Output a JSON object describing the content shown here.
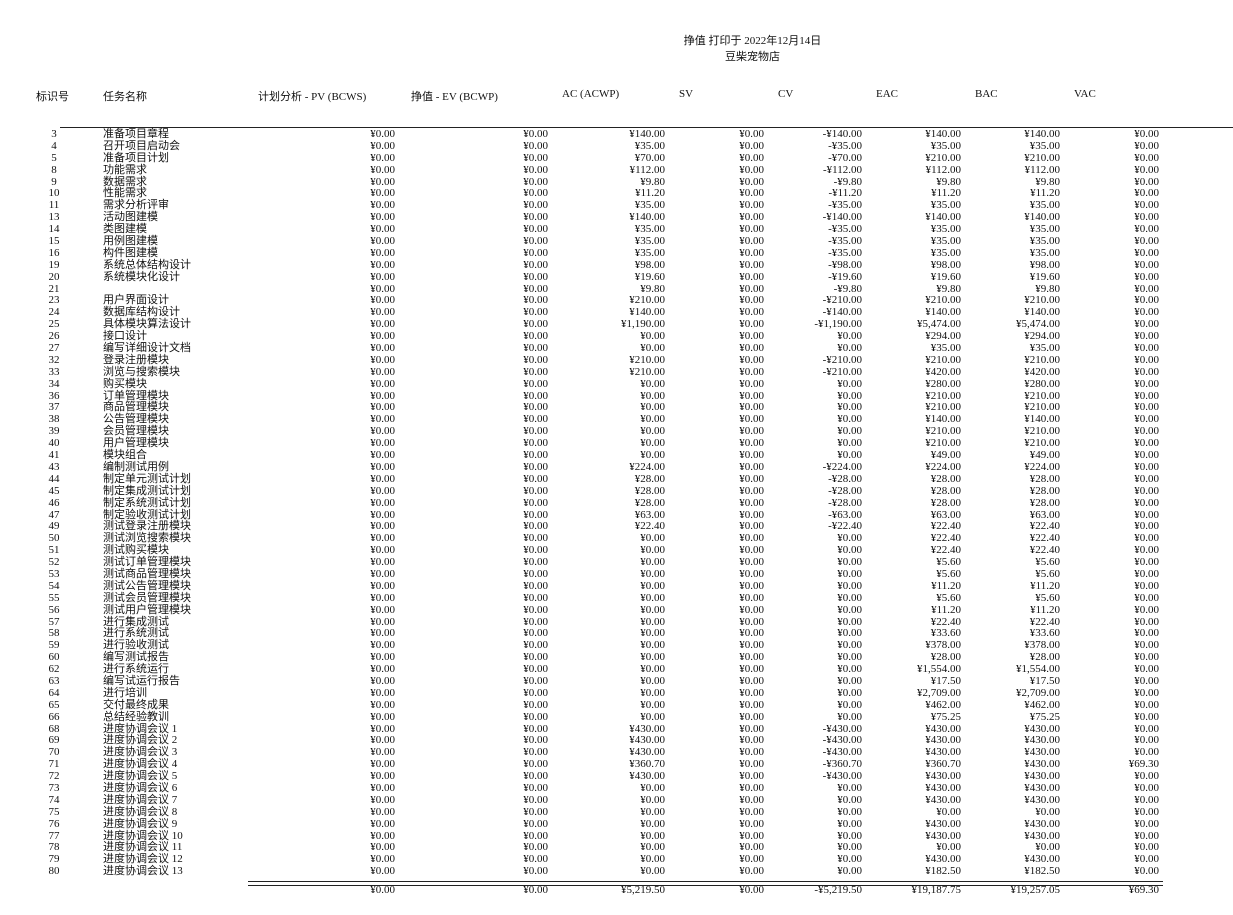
{
  "header": {
    "title_line1": "挣值 打印于 2022年12月14日",
    "title_line2": "豆柴宠物店"
  },
  "columns": {
    "id": "标识号",
    "name": "任务名称",
    "pv": "计划分析 - PV (BCWS)",
    "ev": "挣值 - EV (BCWP)",
    "ac": "AC (ACWP)",
    "sv": "SV",
    "cv": "CV",
    "eac": "EAC",
    "bac": "BAC",
    "vac": "VAC"
  },
  "rows": [
    [
      "3",
      "准备项目章程",
      "¥0.00",
      "¥0.00",
      "¥140.00",
      "¥0.00",
      "-¥140.00",
      "¥140.00",
      "¥140.00",
      "¥0.00"
    ],
    [
      "4",
      "召开项目启动会",
      "¥0.00",
      "¥0.00",
      "¥35.00",
      "¥0.00",
      "-¥35.00",
      "¥35.00",
      "¥35.00",
      "¥0.00"
    ],
    [
      "5",
      "准备项目计划",
      "¥0.00",
      "¥0.00",
      "¥70.00",
      "¥0.00",
      "-¥70.00",
      "¥210.00",
      "¥210.00",
      "¥0.00"
    ],
    [
      "8",
      "功能需求",
      "¥0.00",
      "¥0.00",
      "¥112.00",
      "¥0.00",
      "-¥112.00",
      "¥112.00",
      "¥112.00",
      "¥0.00"
    ],
    [
      "9",
      "数据需求",
      "¥0.00",
      "¥0.00",
      "¥9.80",
      "¥0.00",
      "-¥9.80",
      "¥9.80",
      "¥9.80",
      "¥0.00"
    ],
    [
      "10",
      "性能需求",
      "¥0.00",
      "¥0.00",
      "¥11.20",
      "¥0.00",
      "-¥11.20",
      "¥11.20",
      "¥11.20",
      "¥0.00"
    ],
    [
      "11",
      "需求分析评审",
      "¥0.00",
      "¥0.00",
      "¥35.00",
      "¥0.00",
      "-¥35.00",
      "¥35.00",
      "¥35.00",
      "¥0.00"
    ],
    [
      "13",
      "活动图建模",
      "¥0.00",
      "¥0.00",
      "¥140.00",
      "¥0.00",
      "-¥140.00",
      "¥140.00",
      "¥140.00",
      "¥0.00"
    ],
    [
      "14",
      "类图建模",
      "¥0.00",
      "¥0.00",
      "¥35.00",
      "¥0.00",
      "-¥35.00",
      "¥35.00",
      "¥35.00",
      "¥0.00"
    ],
    [
      "15",
      "用例图建模",
      "¥0.00",
      "¥0.00",
      "¥35.00",
      "¥0.00",
      "-¥35.00",
      "¥35.00",
      "¥35.00",
      "¥0.00"
    ],
    [
      "16",
      "构件图建模",
      "¥0.00",
      "¥0.00",
      "¥35.00",
      "¥0.00",
      "-¥35.00",
      "¥35.00",
      "¥35.00",
      "¥0.00"
    ],
    [
      "19",
      "系统总体结构设计",
      "¥0.00",
      "¥0.00",
      "¥98.00",
      "¥0.00",
      "-¥98.00",
      "¥98.00",
      "¥98.00",
      "¥0.00"
    ],
    [
      "20",
      "系统模块化设计",
      "¥0.00",
      "¥0.00",
      "¥19.60",
      "¥0.00",
      "-¥19.60",
      "¥19.60",
      "¥19.60",
      "¥0.00"
    ],
    [
      "21",
      "",
      "¥0.00",
      "¥0.00",
      "¥9.80",
      "¥0.00",
      "-¥9.80",
      "¥9.80",
      "¥9.80",
      "¥0.00"
    ],
    [
      "23",
      "用户界面设计",
      "¥0.00",
      "¥0.00",
      "¥210.00",
      "¥0.00",
      "-¥210.00",
      "¥210.00",
      "¥210.00",
      "¥0.00"
    ],
    [
      "24",
      "数据库结构设计",
      "¥0.00",
      "¥0.00",
      "¥140.00",
      "¥0.00",
      "-¥140.00",
      "¥140.00",
      "¥140.00",
      "¥0.00"
    ],
    [
      "25",
      "具体模块算法设计",
      "¥0.00",
      "¥0.00",
      "¥1,190.00",
      "¥0.00",
      "-¥1,190.00",
      "¥5,474.00",
      "¥5,474.00",
      "¥0.00"
    ],
    [
      "26",
      "接口设计",
      "¥0.00",
      "¥0.00",
      "¥0.00",
      "¥0.00",
      "¥0.00",
      "¥294.00",
      "¥294.00",
      "¥0.00"
    ],
    [
      "27",
      "编写详细设计文档",
      "¥0.00",
      "¥0.00",
      "¥0.00",
      "¥0.00",
      "¥0.00",
      "¥35.00",
      "¥35.00",
      "¥0.00"
    ],
    [
      "32",
      "登录注册模块",
      "¥0.00",
      "¥0.00",
      "¥210.00",
      "¥0.00",
      "-¥210.00",
      "¥210.00",
      "¥210.00",
      "¥0.00"
    ],
    [
      "33",
      "浏览与搜索模块",
      "¥0.00",
      "¥0.00",
      "¥210.00",
      "¥0.00",
      "-¥210.00",
      "¥420.00",
      "¥420.00",
      "¥0.00"
    ],
    [
      "34",
      "购买模块",
      "¥0.00",
      "¥0.00",
      "¥0.00",
      "¥0.00",
      "¥0.00",
      "¥280.00",
      "¥280.00",
      "¥0.00"
    ],
    [
      "36",
      "订单管理模块",
      "¥0.00",
      "¥0.00",
      "¥0.00",
      "¥0.00",
      "¥0.00",
      "¥210.00",
      "¥210.00",
      "¥0.00"
    ],
    [
      "37",
      "商品管理模块",
      "¥0.00",
      "¥0.00",
      "¥0.00",
      "¥0.00",
      "¥0.00",
      "¥210.00",
      "¥210.00",
      "¥0.00"
    ],
    [
      "38",
      "公告管理模块",
      "¥0.00",
      "¥0.00",
      "¥0.00",
      "¥0.00",
      "¥0.00",
      "¥140.00",
      "¥140.00",
      "¥0.00"
    ],
    [
      "39",
      "会员管理模块",
      "¥0.00",
      "¥0.00",
      "¥0.00",
      "¥0.00",
      "¥0.00",
      "¥210.00",
      "¥210.00",
      "¥0.00"
    ],
    [
      "40",
      "用户管理模块",
      "¥0.00",
      "¥0.00",
      "¥0.00",
      "¥0.00",
      "¥0.00",
      "¥210.00",
      "¥210.00",
      "¥0.00"
    ],
    [
      "41",
      "模块组合",
      "¥0.00",
      "¥0.00",
      "¥0.00",
      "¥0.00",
      "¥0.00",
      "¥49.00",
      "¥49.00",
      "¥0.00"
    ],
    [
      "43",
      "编制测试用例",
      "¥0.00",
      "¥0.00",
      "¥224.00",
      "¥0.00",
      "-¥224.00",
      "¥224.00",
      "¥224.00",
      "¥0.00"
    ],
    [
      "44",
      "制定单元测试计划",
      "¥0.00",
      "¥0.00",
      "¥28.00",
      "¥0.00",
      "-¥28.00",
      "¥28.00",
      "¥28.00",
      "¥0.00"
    ],
    [
      "45",
      "制定集成测试计划",
      "¥0.00",
      "¥0.00",
      "¥28.00",
      "¥0.00",
      "-¥28.00",
      "¥28.00",
      "¥28.00",
      "¥0.00"
    ],
    [
      "46",
      "制定系统测试计划",
      "¥0.00",
      "¥0.00",
      "¥28.00",
      "¥0.00",
      "-¥28.00",
      "¥28.00",
      "¥28.00",
      "¥0.00"
    ],
    [
      "47",
      "制定验收测试计划",
      "¥0.00",
      "¥0.00",
      "¥63.00",
      "¥0.00",
      "-¥63.00",
      "¥63.00",
      "¥63.00",
      "¥0.00"
    ],
    [
      "49",
      "测试登录注册模块",
      "¥0.00",
      "¥0.00",
      "¥22.40",
      "¥0.00",
      "-¥22.40",
      "¥22.40",
      "¥22.40",
      "¥0.00"
    ],
    [
      "50",
      "测试浏览搜索模块",
      "¥0.00",
      "¥0.00",
      "¥0.00",
      "¥0.00",
      "¥0.00",
      "¥22.40",
      "¥22.40",
      "¥0.00"
    ],
    [
      "51",
      "测试购买模块",
      "¥0.00",
      "¥0.00",
      "¥0.00",
      "¥0.00",
      "¥0.00",
      "¥22.40",
      "¥22.40",
      "¥0.00"
    ],
    [
      "52",
      "测试订单管理模块",
      "¥0.00",
      "¥0.00",
      "¥0.00",
      "¥0.00",
      "¥0.00",
      "¥5.60",
      "¥5.60",
      "¥0.00"
    ],
    [
      "53",
      "测试商品管理模块",
      "¥0.00",
      "¥0.00",
      "¥0.00",
      "¥0.00",
      "¥0.00",
      "¥5.60",
      "¥5.60",
      "¥0.00"
    ],
    [
      "54",
      "测试公告管理模块",
      "¥0.00",
      "¥0.00",
      "¥0.00",
      "¥0.00",
      "¥0.00",
      "¥11.20",
      "¥11.20",
      "¥0.00"
    ],
    [
      "55",
      "测试会员管理模块",
      "¥0.00",
      "¥0.00",
      "¥0.00",
      "¥0.00",
      "¥0.00",
      "¥5.60",
      "¥5.60",
      "¥0.00"
    ],
    [
      "56",
      "测试用户管理模块",
      "¥0.00",
      "¥0.00",
      "¥0.00",
      "¥0.00",
      "¥0.00",
      "¥11.20",
      "¥11.20",
      "¥0.00"
    ],
    [
      "57",
      "进行集成测试",
      "¥0.00",
      "¥0.00",
      "¥0.00",
      "¥0.00",
      "¥0.00",
      "¥22.40",
      "¥22.40",
      "¥0.00"
    ],
    [
      "58",
      "进行系统测试",
      "¥0.00",
      "¥0.00",
      "¥0.00",
      "¥0.00",
      "¥0.00",
      "¥33.60",
      "¥33.60",
      "¥0.00"
    ],
    [
      "59",
      "进行验收测试",
      "¥0.00",
      "¥0.00",
      "¥0.00",
      "¥0.00",
      "¥0.00",
      "¥378.00",
      "¥378.00",
      "¥0.00"
    ],
    [
      "60",
      "编写测试报告",
      "¥0.00",
      "¥0.00",
      "¥0.00",
      "¥0.00",
      "¥0.00",
      "¥28.00",
      "¥28.00",
      "¥0.00"
    ],
    [
      "62",
      "进行系统运行",
      "¥0.00",
      "¥0.00",
      "¥0.00",
      "¥0.00",
      "¥0.00",
      "¥1,554.00",
      "¥1,554.00",
      "¥0.00"
    ],
    [
      "63",
      "编写试运行报告",
      "¥0.00",
      "¥0.00",
      "¥0.00",
      "¥0.00",
      "¥0.00",
      "¥17.50",
      "¥17.50",
      "¥0.00"
    ],
    [
      "64",
      "进行培训",
      "¥0.00",
      "¥0.00",
      "¥0.00",
      "¥0.00",
      "¥0.00",
      "¥2,709.00",
      "¥2,709.00",
      "¥0.00"
    ],
    [
      "65",
      "交付最终成果",
      "¥0.00",
      "¥0.00",
      "¥0.00",
      "¥0.00",
      "¥0.00",
      "¥462.00",
      "¥462.00",
      "¥0.00"
    ],
    [
      "66",
      "总结经验教训",
      "¥0.00",
      "¥0.00",
      "¥0.00",
      "¥0.00",
      "¥0.00",
      "¥75.25",
      "¥75.25",
      "¥0.00"
    ],
    [
      "68",
      "进度协调会议 1",
      "¥0.00",
      "¥0.00",
      "¥430.00",
      "¥0.00",
      "-¥430.00",
      "¥430.00",
      "¥430.00",
      "¥0.00"
    ],
    [
      "69",
      "进度协调会议 2",
      "¥0.00",
      "¥0.00",
      "¥430.00",
      "¥0.00",
      "-¥430.00",
      "¥430.00",
      "¥430.00",
      "¥0.00"
    ],
    [
      "70",
      "进度协调会议 3",
      "¥0.00",
      "¥0.00",
      "¥430.00",
      "¥0.00",
      "-¥430.00",
      "¥430.00",
      "¥430.00",
      "¥0.00"
    ],
    [
      "71",
      "进度协调会议 4",
      "¥0.00",
      "¥0.00",
      "¥360.70",
      "¥0.00",
      "-¥360.70",
      "¥360.70",
      "¥430.00",
      "¥69.30"
    ],
    [
      "72",
      "进度协调会议 5",
      "¥0.00",
      "¥0.00",
      "¥430.00",
      "¥0.00",
      "-¥430.00",
      "¥430.00",
      "¥430.00",
      "¥0.00"
    ],
    [
      "73",
      "进度协调会议 6",
      "¥0.00",
      "¥0.00",
      "¥0.00",
      "¥0.00",
      "¥0.00",
      "¥430.00",
      "¥430.00",
      "¥0.00"
    ],
    [
      "74",
      "进度协调会议 7",
      "¥0.00",
      "¥0.00",
      "¥0.00",
      "¥0.00",
      "¥0.00",
      "¥430.00",
      "¥430.00",
      "¥0.00"
    ],
    [
      "75",
      "进度协调会议 8",
      "¥0.00",
      "¥0.00",
      "¥0.00",
      "¥0.00",
      "¥0.00",
      "¥0.00",
      "¥0.00",
      "¥0.00"
    ],
    [
      "76",
      "进度协调会议 9",
      "¥0.00",
      "¥0.00",
      "¥0.00",
      "¥0.00",
      "¥0.00",
      "¥430.00",
      "¥430.00",
      "¥0.00"
    ],
    [
      "77",
      "进度协调会议 10",
      "¥0.00",
      "¥0.00",
      "¥0.00",
      "¥0.00",
      "¥0.00",
      "¥430.00",
      "¥430.00",
      "¥0.00"
    ],
    [
      "78",
      "进度协调会议 11",
      "¥0.00",
      "¥0.00",
      "¥0.00",
      "¥0.00",
      "¥0.00",
      "¥0.00",
      "¥0.00",
      "¥0.00"
    ],
    [
      "79",
      "进度协调会议 12",
      "¥0.00",
      "¥0.00",
      "¥0.00",
      "¥0.00",
      "¥0.00",
      "¥430.00",
      "¥430.00",
      "¥0.00"
    ],
    [
      "80",
      "进度协调会议 13",
      "¥0.00",
      "¥0.00",
      "¥0.00",
      "¥0.00",
      "¥0.00",
      "¥182.50",
      "¥182.50",
      "¥0.00"
    ]
  ],
  "totals": {
    "pv": "¥0.00",
    "ev": "¥0.00",
    "ac": "¥5,219.50",
    "sv": "¥0.00",
    "cv": "-¥5,219.50",
    "eac": "¥19,187.75",
    "bac": "¥19,257.05",
    "vac": "¥69.30"
  }
}
